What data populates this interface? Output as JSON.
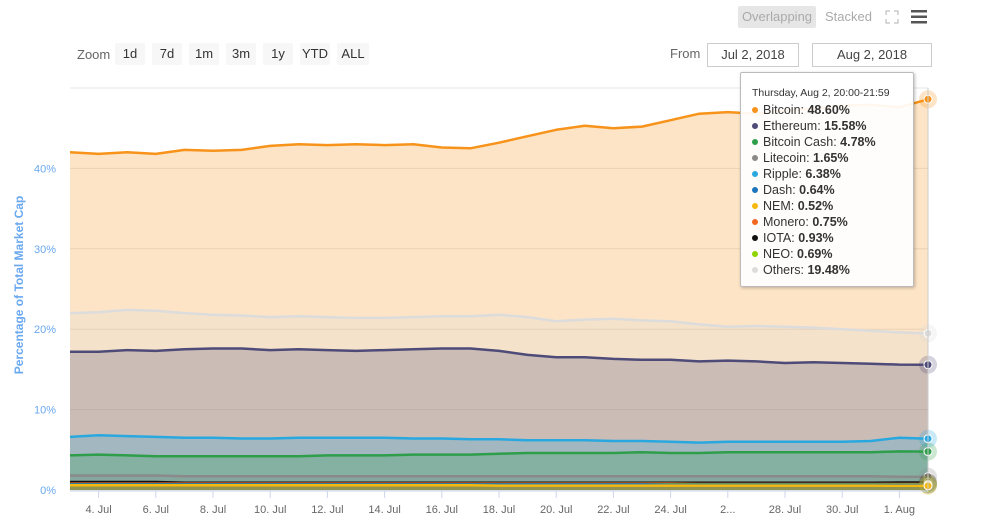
{
  "zoom": {
    "label": "Zoom",
    "buttons": [
      "1d",
      "7d",
      "1m",
      "3m",
      "1y",
      "YTD",
      "ALL"
    ]
  },
  "range": {
    "from_label": "From",
    "from_value": "Jul 2, 2018",
    "to_label": "To",
    "to_value": "Aug 2, 2018"
  },
  "toolbar": {
    "overlapping": "Overlapping",
    "stacked": "Stacked",
    "fullscreen_icon": "fullscreen-icon",
    "menu_icon": "hamburger-menu-icon"
  },
  "tooltip": {
    "header": "Thursday, Aug 2, 20:00-21:59",
    "rows": [
      {
        "name": "Bitcoin",
        "value": "48.60%"
      },
      {
        "name": "Ethereum",
        "value": "15.58%"
      },
      {
        "name": "Bitcoin Cash",
        "value": "4.78%"
      },
      {
        "name": "Litecoin",
        "value": "1.65%"
      },
      {
        "name": "Ripple",
        "value": "6.38%"
      },
      {
        "name": "Dash",
        "value": "0.64%"
      },
      {
        "name": "NEM",
        "value": "0.52%"
      },
      {
        "name": "Monero",
        "value": "0.75%"
      },
      {
        "name": "IOTA",
        "value": "0.93%"
      },
      {
        "name": "NEO",
        "value": "0.69%"
      },
      {
        "name": "Others",
        "value": "19.48%"
      }
    ]
  },
  "chart_data": {
    "type": "area",
    "mode": "overlapping",
    "ylabel": "Percentage of Total Market Cap",
    "ylim": [
      0,
      50
    ],
    "yticks": [
      "0%",
      "10%",
      "20%",
      "30%",
      "40%"
    ],
    "ytick_values": [
      0,
      10,
      20,
      30,
      40
    ],
    "xticks": [
      "4. Jul",
      "6. Jul",
      "8. Jul",
      "10. Jul",
      "12. Jul",
      "14. Jul",
      "16. Jul",
      "18. Jul",
      "20. Jul",
      "22. Jul",
      "24. Jul",
      "2...",
      "28. Jul",
      "30. Jul",
      "1. Aug"
    ],
    "xtick_days": [
      4,
      6,
      8,
      10,
      12,
      14,
      16,
      18,
      20,
      22,
      24,
      26,
      28,
      30,
      32
    ],
    "x_start": "2018-07-03",
    "x_end": "2018-08-02",
    "grid": true,
    "series": [
      {
        "name": "Bitcoin",
        "color": "#f7931a",
        "values": [
          42.0,
          41.8,
          42.0,
          41.8,
          42.3,
          42.2,
          42.3,
          42.8,
          43.0,
          42.9,
          43.0,
          42.9,
          43.0,
          42.6,
          42.5,
          43.2,
          44.0,
          44.8,
          45.3,
          45.0,
          45.2,
          46.0,
          46.8,
          47.0,
          46.8,
          47.2,
          47.4,
          47.8,
          47.9,
          47.6,
          48.6
        ]
      },
      {
        "name": "Others",
        "color": "#dcdcdc",
        "values": [
          22.0,
          22.1,
          22.4,
          22.3,
          22.0,
          21.8,
          21.7,
          21.5,
          21.6,
          21.5,
          21.4,
          21.4,
          21.5,
          21.6,
          21.6,
          21.8,
          21.5,
          21.0,
          21.2,
          21.3,
          21.1,
          21.0,
          20.6,
          20.3,
          20.4,
          20.3,
          20.2,
          20.0,
          19.8,
          19.6,
          19.48
        ]
      },
      {
        "name": "Ethereum",
        "color": "#4e4b78",
        "values": [
          17.2,
          17.2,
          17.4,
          17.3,
          17.5,
          17.6,
          17.6,
          17.4,
          17.5,
          17.4,
          17.3,
          17.4,
          17.5,
          17.6,
          17.6,
          17.3,
          16.8,
          16.5,
          16.5,
          16.3,
          16.2,
          16.2,
          16.0,
          16.1,
          16.0,
          15.8,
          15.9,
          15.8,
          15.7,
          15.6,
          15.58
        ]
      },
      {
        "name": "Ripple",
        "color": "#29a8e0",
        "values": [
          6.6,
          6.8,
          6.7,
          6.6,
          6.5,
          6.5,
          6.4,
          6.4,
          6.5,
          6.5,
          6.5,
          6.5,
          6.4,
          6.4,
          6.3,
          6.3,
          6.2,
          6.2,
          6.2,
          6.1,
          6.1,
          6.0,
          5.9,
          6.0,
          6.0,
          6.0,
          6.0,
          6.0,
          6.1,
          6.5,
          6.38
        ]
      },
      {
        "name": "Bitcoin Cash",
        "color": "#2e9e4a",
        "values": [
          4.3,
          4.4,
          4.3,
          4.2,
          4.2,
          4.2,
          4.2,
          4.2,
          4.2,
          4.3,
          4.3,
          4.3,
          4.4,
          4.4,
          4.4,
          4.5,
          4.6,
          4.6,
          4.6,
          4.6,
          4.7,
          4.6,
          4.6,
          4.7,
          4.7,
          4.7,
          4.7,
          4.7,
          4.7,
          4.8,
          4.78
        ]
      },
      {
        "name": "Litecoin",
        "color": "#8a8a8a",
        "values": [
          1.8,
          1.8,
          1.8,
          1.8,
          1.7,
          1.7,
          1.7,
          1.7,
          1.7,
          1.7,
          1.7,
          1.7,
          1.7,
          1.7,
          1.7,
          1.7,
          1.7,
          1.7,
          1.7,
          1.7,
          1.7,
          1.7,
          1.7,
          1.7,
          1.7,
          1.7,
          1.7,
          1.7,
          1.7,
          1.65,
          1.65
        ]
      },
      {
        "name": "IOTA",
        "color": "#111111",
        "values": [
          1.0,
          1.0,
          1.0,
          1.0,
          0.9,
          0.9,
          0.9,
          0.9,
          0.9,
          0.9,
          0.9,
          0.9,
          0.9,
          0.9,
          0.9,
          0.9,
          0.9,
          0.9,
          0.9,
          0.9,
          0.9,
          0.9,
          0.9,
          0.9,
          0.9,
          0.9,
          0.9,
          0.9,
          0.9,
          0.93,
          0.93
        ]
      },
      {
        "name": "Monero",
        "color": "#f26822",
        "values": [
          0.8,
          0.8,
          0.8,
          0.8,
          0.8,
          0.8,
          0.8,
          0.8,
          0.8,
          0.8,
          0.8,
          0.8,
          0.8,
          0.8,
          0.8,
          0.8,
          0.8,
          0.8,
          0.8,
          0.8,
          0.8,
          0.8,
          0.75,
          0.75,
          0.75,
          0.75,
          0.75,
          0.75,
          0.75,
          0.75,
          0.75
        ]
      },
      {
        "name": "NEO",
        "color": "#8fd400",
        "values": [
          0.7,
          0.7,
          0.7,
          0.7,
          0.7,
          0.7,
          0.7,
          0.7,
          0.7,
          0.7,
          0.7,
          0.7,
          0.7,
          0.7,
          0.7,
          0.7,
          0.7,
          0.7,
          0.7,
          0.7,
          0.7,
          0.7,
          0.7,
          0.7,
          0.7,
          0.7,
          0.7,
          0.7,
          0.7,
          0.69,
          0.69
        ]
      },
      {
        "name": "Dash",
        "color": "#1c75bc",
        "values": [
          0.7,
          0.7,
          0.7,
          0.7,
          0.7,
          0.7,
          0.7,
          0.7,
          0.7,
          0.7,
          0.7,
          0.7,
          0.7,
          0.7,
          0.7,
          0.7,
          0.7,
          0.7,
          0.7,
          0.7,
          0.7,
          0.65,
          0.65,
          0.65,
          0.65,
          0.65,
          0.65,
          0.65,
          0.65,
          0.64,
          0.64
        ]
      },
      {
        "name": "NEM",
        "color": "#f5b80f",
        "values": [
          0.6,
          0.6,
          0.6,
          0.6,
          0.6,
          0.6,
          0.6,
          0.6,
          0.6,
          0.6,
          0.6,
          0.6,
          0.6,
          0.6,
          0.6,
          0.55,
          0.55,
          0.55,
          0.55,
          0.55,
          0.55,
          0.55,
          0.55,
          0.55,
          0.55,
          0.55,
          0.55,
          0.55,
          0.55,
          0.52,
          0.52
        ]
      }
    ]
  }
}
